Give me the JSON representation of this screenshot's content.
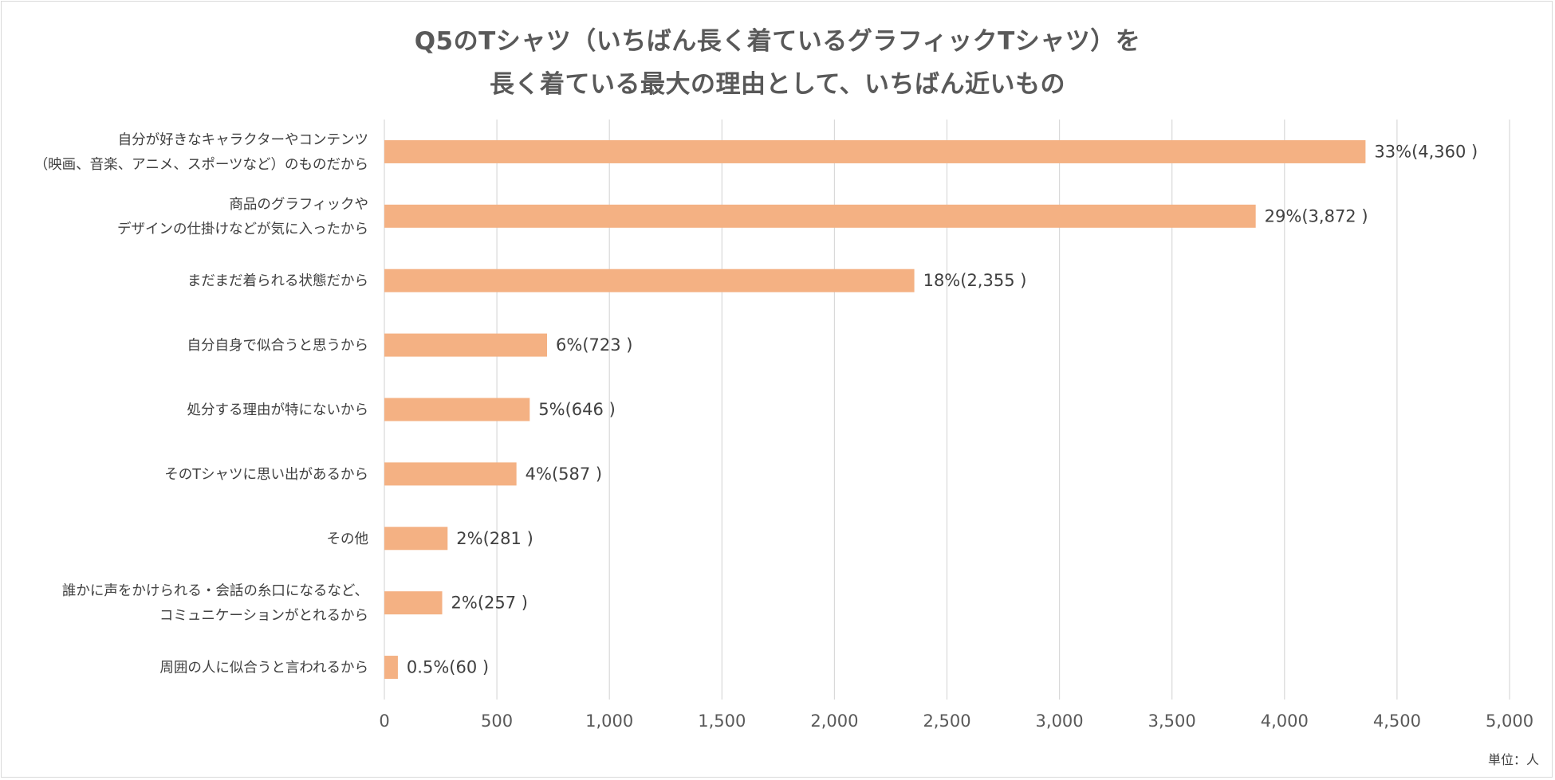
{
  "chart_data": {
    "type": "bar",
    "orientation": "horizontal",
    "title_line1": "Q5のTシャツ（いちばん長く着ているグラフィックTシャツ）を",
    "title_line2": "長く着ている最大の理由として、いちばん近いもの",
    "unit_label": "単位：人",
    "bar_color": "#F4B183",
    "grid": true,
    "xlim": [
      0,
      5000
    ],
    "x_ticks": [
      0,
      500,
      1000,
      1500,
      2000,
      2500,
      3000,
      3500,
      4000,
      4500,
      5000
    ],
    "x_tick_labels": [
      "0",
      "500",
      "1,000",
      "1,500",
      "2,000",
      "2,500",
      "3,000",
      "3,500",
      "4,000",
      "4,500",
      "5,000"
    ],
    "categories": [
      [
        "自分が好きなキャラクターやコンテンツ",
        "（映画、音楽、アニメ、スポーツなど）のものだから"
      ],
      [
        "商品のグラフィックや",
        "デザインの仕掛けなどが気に入ったから"
      ],
      [
        "まだまだ着られる状態だから"
      ],
      [
        "自分自身で似合うと思うから"
      ],
      [
        "処分する理由が特にないから"
      ],
      [
        "そのTシャツに思い出があるから"
      ],
      [
        "その他"
      ],
      [
        "誰かに声をかけられる・会話の糸口になるなど、",
        "コミュニケーションがとれるから"
      ],
      [
        "周囲の人に似合うと言われるから"
      ]
    ],
    "values": [
      4360,
      3872,
      2355,
      723,
      646,
      587,
      281,
      257,
      60
    ],
    "data_labels": [
      "33%(4,360 )",
      "29%(3,872 )",
      "18%(2,355 )",
      "6%(723 )",
      "5%(646 )",
      "4%(587 )",
      "2%(281 )",
      "2%(257 )",
      "0.5%(60 )"
    ]
  }
}
